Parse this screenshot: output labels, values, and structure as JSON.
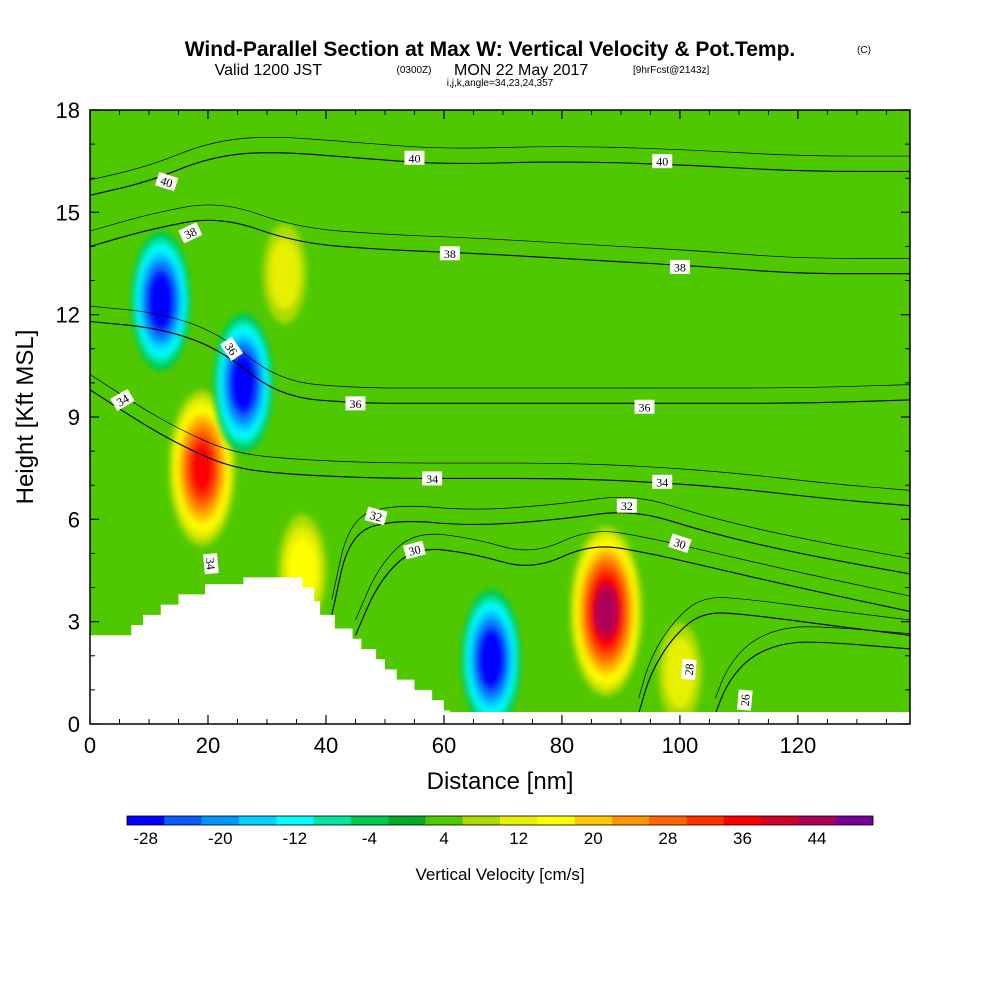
{
  "title": {
    "main": "Wind-Parallel Section at Max W: Vertical Velocity & Pot.Temp.",
    "copyright": "(C)",
    "valid_prefix": "Valid 1200 JST",
    "valid_utc": "(0300Z)",
    "valid_date": "MON 22 May 2017",
    "forecast": "[9hrFcst@2143z]",
    "section_info": "i,j,k,angle=34,23,24,357"
  },
  "chart_data": {
    "type": "heatmap",
    "subtype": "vertical cross-section with filled contours and isentropes",
    "xlabel": "Distance [nm]",
    "ylabel": "Height [Kft MSL]",
    "xlim": [
      0,
      139
    ],
    "ylim": [
      0,
      18
    ],
    "x_ticks": [
      "0",
      "20",
      "40",
      "60",
      "80",
      "100",
      "120"
    ],
    "y_ticks": [
      "0",
      "3",
      "6",
      "9",
      "12",
      "15",
      "18"
    ],
    "x_tick_values": [
      0,
      20,
      40,
      60,
      80,
      100,
      120
    ],
    "y_tick_values": [
      0,
      3,
      6,
      9,
      12,
      15,
      18
    ],
    "grid": false,
    "background_field": "4 to 8",
    "colorbar": {
      "label": "Vertical Velocity [cm/s]",
      "levels": [
        -28,
        -24,
        -20,
        -16,
        -12,
        -8,
        -4,
        0,
        4,
        8,
        12,
        16,
        20,
        24,
        28,
        32,
        36,
        40,
        44,
        48
      ],
      "tick_labels": [
        "-28",
        "-20",
        "-12",
        "-4",
        "4",
        "12",
        "20",
        "28",
        "36",
        "44"
      ],
      "tick_values": [
        -28,
        -20,
        -12,
        -4,
        4,
        12,
        20,
        28,
        36,
        44
      ],
      "colors": [
        "#0000ff",
        "#0a5aff",
        "#0096ff",
        "#00d2ff",
        "#00ffff",
        "#00e6a0",
        "#00c850",
        "#00aa28",
        "#50c800",
        "#aadc00",
        "#e6f000",
        "#ffff00",
        "#ffc800",
        "#ff9600",
        "#ff6400",
        "#ff3200",
        "#ff0000",
        "#d20028",
        "#aa005a",
        "#780096"
      ]
    },
    "features": [
      {
        "kind": "updraft",
        "center": [
          19,
          7.5
        ],
        "peak": 36
      },
      {
        "kind": "updraft",
        "center": [
          33,
          13.2
        ],
        "peak": 12
      },
      {
        "kind": "updraft",
        "center": [
          36,
          4.5
        ],
        "peak": 16
      },
      {
        "kind": "updraft",
        "center": [
          87.5,
          3.3
        ],
        "peak": 44
      },
      {
        "kind": "updraft",
        "center": [
          100,
          1.5
        ],
        "peak": 12
      },
      {
        "kind": "downdraft",
        "center": [
          12,
          12.4
        ],
        "peak": -28
      },
      {
        "kind": "downdraft",
        "center": [
          26,
          10
        ],
        "peak": -28
      },
      {
        "kind": "downdraft",
        "center": [
          68,
          1.9
        ],
        "peak": -28
      }
    ],
    "terrain": [
      [
        0,
        2.6
      ],
      [
        7,
        2.6
      ],
      [
        7,
        2.9
      ],
      [
        9,
        2.9
      ],
      [
        9,
        3.2
      ],
      [
        12,
        3.2
      ],
      [
        12,
        3.5
      ],
      [
        15,
        3.5
      ],
      [
        15,
        3.8
      ],
      [
        19.5,
        3.8
      ],
      [
        19.5,
        4.1
      ],
      [
        26,
        4.1
      ],
      [
        26,
        4.3
      ],
      [
        36,
        4.3
      ],
      [
        36,
        4.0
      ],
      [
        38,
        4.0
      ],
      [
        38,
        3.6
      ],
      [
        39,
        3.6
      ],
      [
        39,
        3.2
      ],
      [
        41.5,
        3.2
      ],
      [
        41.5,
        2.8
      ],
      [
        44.5,
        2.8
      ],
      [
        44.5,
        2.5
      ],
      [
        46,
        2.5
      ],
      [
        46,
        2.2
      ],
      [
        48.5,
        2.2
      ],
      [
        48.5,
        1.9
      ],
      [
        50,
        1.9
      ],
      [
        50,
        1.6
      ],
      [
        52,
        1.6
      ],
      [
        52,
        1.3
      ],
      [
        55,
        1.3
      ],
      [
        55,
        1.0
      ],
      [
        58,
        1.0
      ],
      [
        58,
        0.7
      ],
      [
        60,
        0.7
      ],
      [
        60,
        0.4
      ],
      [
        61,
        0.4
      ],
      [
        61,
        0.35
      ],
      [
        139,
        0.35
      ]
    ],
    "isentropes": [
      {
        "value": 26,
        "points": [
          [
            106,
            0.3
          ],
          [
            108,
            1.2
          ],
          [
            112,
            2.0
          ],
          [
            118,
            2.4
          ],
          [
            125,
            2.4
          ],
          [
            139,
            2.2
          ]
        ]
      },
      {
        "value": 28,
        "points": [
          [
            93,
            0.3
          ],
          [
            95,
            1.5
          ],
          [
            99,
            2.6
          ],
          [
            104,
            3.3
          ],
          [
            112,
            3.2
          ],
          [
            125,
            2.9
          ],
          [
            139,
            2.6
          ]
        ]
      },
      {
        "value": 30,
        "points": [
          [
            45,
            2.6
          ],
          [
            49,
            4.2
          ],
          [
            55,
            5.2
          ],
          [
            65,
            5.0
          ],
          [
            75,
            4.5
          ],
          [
            85,
            5.3
          ],
          [
            95,
            5.0
          ],
          [
            105,
            4.6
          ],
          [
            120,
            4.0
          ],
          [
            139,
            3.3
          ]
        ]
      },
      {
        "value": 32,
        "points": [
          [
            41,
            3.2
          ],
          [
            44,
            5.6
          ],
          [
            52,
            6.0
          ],
          [
            65,
            5.8
          ],
          [
            80,
            6.0
          ],
          [
            92,
            6.3
          ],
          [
            105,
            5.6
          ],
          [
            120,
            5.0
          ],
          [
            139,
            4.4
          ]
        ]
      },
      {
        "value": 34,
        "points": [
          [
            0,
            9.8
          ],
          [
            8,
            8.9
          ],
          [
            15,
            8.2
          ],
          [
            24,
            7.5
          ],
          [
            35,
            7.3
          ],
          [
            50,
            7.2
          ],
          [
            65,
            7.2
          ],
          [
            80,
            7.2
          ],
          [
            95,
            7.1
          ],
          [
            110,
            6.9
          ],
          [
            125,
            6.6
          ],
          [
            139,
            6.4
          ]
        ]
      },
      {
        "value": 36,
        "points": [
          [
            0,
            11.8
          ],
          [
            12,
            11.6
          ],
          [
            22,
            11.0
          ],
          [
            32,
            9.6
          ],
          [
            45,
            9.4
          ],
          [
            60,
            9.4
          ],
          [
            80,
            9.4
          ],
          [
            100,
            9.4
          ],
          [
            120,
            9.4
          ],
          [
            139,
            9.5
          ]
        ]
      },
      {
        "value": 38,
        "points": [
          [
            0,
            14.0
          ],
          [
            10,
            14.5
          ],
          [
            22,
            14.9
          ],
          [
            35,
            14.1
          ],
          [
            50,
            13.9
          ],
          [
            65,
            13.8
          ],
          [
            85,
            13.6
          ],
          [
            105,
            13.4
          ],
          [
            120,
            13.2
          ],
          [
            139,
            13.2
          ]
        ]
      },
      {
        "value": 40,
        "points": [
          [
            0,
            15.5
          ],
          [
            10,
            15.9
          ],
          [
            20,
            16.6
          ],
          [
            30,
            16.8
          ],
          [
            45,
            16.6
          ],
          [
            60,
            16.4
          ],
          [
            80,
            16.5
          ],
          [
            100,
            16.4
          ],
          [
            120,
            16.2
          ],
          [
            139,
            16.2
          ]
        ]
      }
    ],
    "contour_labels": [
      {
        "text": "40",
        "x": 13,
        "y": 15.9,
        "angle": 18
      },
      {
        "text": "40",
        "x": 55,
        "y": 16.6,
        "angle": 0
      },
      {
        "text": "40",
        "x": 97,
        "y": 16.5,
        "angle": 0
      },
      {
        "text": "38",
        "x": 17,
        "y": 14.4,
        "angle": -25
      },
      {
        "text": "38",
        "x": 61,
        "y": 13.8,
        "angle": 0
      },
      {
        "text": "38",
        "x": 100,
        "y": 13.4,
        "angle": 0
      },
      {
        "text": "36",
        "x": 24,
        "y": 11.0,
        "angle": 55
      },
      {
        "text": "36",
        "x": 45,
        "y": 9.4,
        "angle": 0
      },
      {
        "text": "36",
        "x": 94,
        "y": 9.3,
        "angle": 0
      },
      {
        "text": "34",
        "x": 5.5,
        "y": 9.5,
        "angle": -30
      },
      {
        "text": "34",
        "x": 58,
        "y": 7.2,
        "angle": 0
      },
      {
        "text": "34",
        "x": 97,
        "y": 7.1,
        "angle": 0
      },
      {
        "text": "34",
        "x": 20.5,
        "y": 4.7,
        "angle": 85
      },
      {
        "text": "32",
        "x": 48.5,
        "y": 6.1,
        "angle": 15
      },
      {
        "text": "32",
        "x": 91,
        "y": 6.4,
        "angle": 0
      },
      {
        "text": "30",
        "x": 55,
        "y": 5.1,
        "angle": -15
      },
      {
        "text": "30",
        "x": 100,
        "y": 5.3,
        "angle": 18
      },
      {
        "text": "28",
        "x": 101.5,
        "y": 1.6,
        "angle": -85
      },
      {
        "text": "26",
        "x": 111,
        "y": 0.7,
        "angle": -85
      }
    ]
  }
}
